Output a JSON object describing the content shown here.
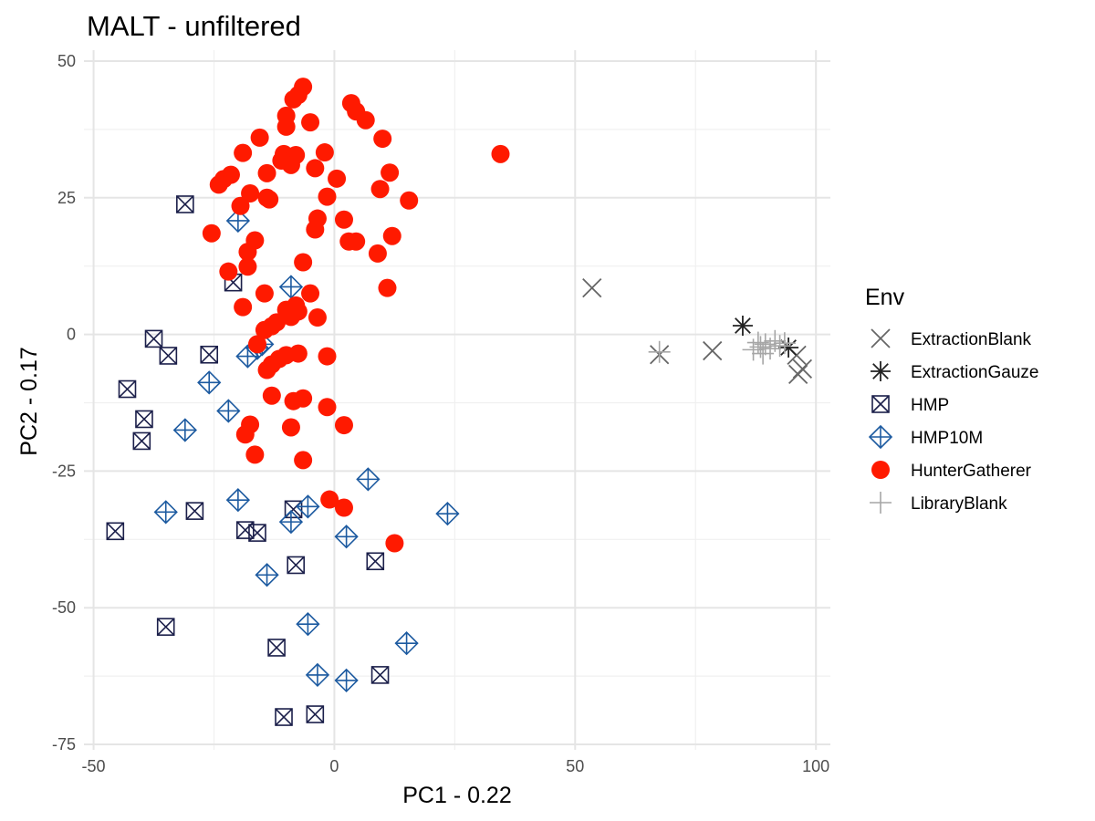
{
  "chart_data": {
    "type": "scatter",
    "title": "MALT - unfiltered",
    "xlabel": "PC1 - 0.22",
    "ylabel": "PC2 - 0.17",
    "xlim": [
      -52,
      103
    ],
    "ylim": [
      -76,
      52
    ],
    "x_ticks": [
      -50,
      0,
      50,
      100
    ],
    "y_ticks": [
      -75,
      -50,
      -25,
      0,
      25,
      50
    ],
    "x_tick_labels": [
      "-50",
      "0",
      "50",
      "100"
    ],
    "y_tick_labels": [
      "-75",
      "-50",
      "-25",
      "0",
      "25",
      "50"
    ],
    "grid": true,
    "legend_title": "Env",
    "legend_position": "right",
    "series": [
      {
        "name": "ExtractionBlank",
        "shape": "cross",
        "color": "#666666",
        "points": [
          [
            53.5,
            8.5
          ],
          [
            67.5,
            -3.7
          ],
          [
            78.5,
            -3.0
          ],
          [
            96.0,
            -3.8
          ],
          [
            96.3,
            -7.3
          ],
          [
            97.2,
            -6.3
          ]
        ]
      },
      {
        "name": "ExtractionGauze",
        "shape": "asterisk",
        "color": "#222222",
        "points": [
          [
            84.8,
            1.6
          ],
          [
            94.3,
            -2.4
          ]
        ]
      },
      {
        "name": "HMP",
        "shape": "square-x",
        "color": "#1b1f4a",
        "points": [
          [
            -31,
            23.8
          ],
          [
            -21,
            9.5
          ],
          [
            -37.5,
            -0.8
          ],
          [
            -34.5,
            -3.9
          ],
          [
            -26,
            -3.7
          ],
          [
            -43,
            -10
          ],
          [
            -39.5,
            -15.5
          ],
          [
            -40,
            -19.5
          ],
          [
            -45.5,
            -36
          ],
          [
            -29,
            -32.3
          ],
          [
            -18.5,
            -35.8
          ],
          [
            -16,
            -36.3
          ],
          [
            -8.5,
            -32
          ],
          [
            -8,
            -42.2
          ],
          [
            8.5,
            -41.5
          ],
          [
            -35,
            -53.5
          ],
          [
            -12,
            -57.3
          ],
          [
            9.5,
            -62.3
          ],
          [
            -10.5,
            -70
          ],
          [
            -4,
            -69.5
          ]
        ]
      },
      {
        "name": "HMP10M",
        "shape": "diamond-plus",
        "color": "#1c5aa0",
        "points": [
          [
            -20,
            20.8
          ],
          [
            -9,
            8.7
          ],
          [
            -15,
            -1.8
          ],
          [
            -16,
            -2.5
          ],
          [
            -18,
            -4
          ],
          [
            -26,
            -8.8
          ],
          [
            -22,
            -14
          ],
          [
            -31,
            -17.5
          ],
          [
            -35,
            -32.5
          ],
          [
            -20,
            -30.3
          ],
          [
            -5.5,
            -31.5
          ],
          [
            -9,
            -34.3
          ],
          [
            2.5,
            -37
          ],
          [
            7,
            -26.5
          ],
          [
            23.5,
            -32.8
          ],
          [
            -14,
            -44
          ],
          [
            -5.5,
            -53
          ],
          [
            15,
            -56.5
          ],
          [
            -3.5,
            -62.3
          ],
          [
            2.5,
            -63.3
          ]
        ]
      },
      {
        "name": "HunterGatherer",
        "shape": "circle",
        "color": "#ff1a00",
        "points": [
          [
            34.5,
            33
          ],
          [
            -6.5,
            45.3
          ],
          [
            -7.5,
            43.8
          ],
          [
            -8.5,
            43
          ],
          [
            3.5,
            42.3
          ],
          [
            4.5,
            40.8
          ],
          [
            6.5,
            39.2
          ],
          [
            -10,
            40
          ],
          [
            -5,
            38.8
          ],
          [
            -10,
            38
          ],
          [
            10,
            35.8
          ],
          [
            -15.5,
            36
          ],
          [
            -19,
            33.2
          ],
          [
            -10.5,
            33
          ],
          [
            -8,
            32.8
          ],
          [
            -2,
            33.3
          ],
          [
            -9,
            31
          ],
          [
            -11,
            31.8
          ],
          [
            -4,
            30.4
          ],
          [
            -14,
            29.5
          ],
          [
            0.5,
            28.5
          ],
          [
            11.5,
            29.6
          ],
          [
            -21.5,
            29.2
          ],
          [
            -23,
            28.4
          ],
          [
            -24,
            27.4
          ],
          [
            9.5,
            26.6
          ],
          [
            -17.5,
            25.8
          ],
          [
            -1.5,
            25.2
          ],
          [
            -14,
            25
          ],
          [
            -13.5,
            24.7
          ],
          [
            15.5,
            24.5
          ],
          [
            -19.5,
            23.5
          ],
          [
            -25.5,
            18.5
          ],
          [
            -3.5,
            21.2
          ],
          [
            2,
            21
          ],
          [
            -4,
            19.2
          ],
          [
            3,
            17
          ],
          [
            4.5,
            17
          ],
          [
            12,
            18
          ],
          [
            -16.5,
            17.2
          ],
          [
            -18,
            15.1
          ],
          [
            9,
            14.8
          ],
          [
            -6.5,
            13.2
          ],
          [
            -18,
            12.4
          ],
          [
            -22,
            11.5
          ],
          [
            11,
            8.5
          ],
          [
            -14.5,
            7.5
          ],
          [
            -5,
            7.5
          ],
          [
            -8,
            5.3
          ],
          [
            -19,
            5
          ],
          [
            -10,
            4.5
          ],
          [
            -7.5,
            4.2
          ],
          [
            -9,
            3.2
          ],
          [
            -3.5,
            3.1
          ],
          [
            -12,
            2.2
          ],
          [
            -13,
            1.5
          ],
          [
            -14.5,
            0.8
          ],
          [
            -16,
            -1.8
          ],
          [
            -1.5,
            -4
          ],
          [
            -7.5,
            -3.5
          ],
          [
            -10,
            -3.8
          ],
          [
            -11.5,
            -4.5
          ],
          [
            -13,
            -5.5
          ],
          [
            -14,
            -6.5
          ],
          [
            -13,
            -11.2
          ],
          [
            -6.5,
            -11.7
          ],
          [
            -8.5,
            -12.2
          ],
          [
            -1.5,
            -13.3
          ],
          [
            -17.5,
            -16.5
          ],
          [
            -9,
            -17
          ],
          [
            2,
            -16.6
          ],
          [
            -18.5,
            -18.3
          ],
          [
            -16.5,
            -22
          ],
          [
            -6.5,
            -23
          ],
          [
            -1,
            -30.2
          ],
          [
            2,
            -31.7
          ],
          [
            12.5,
            -38.2
          ]
        ]
      },
      {
        "name": "LibraryBlank",
        "shape": "plus",
        "color": "#a6a6a6",
        "points": [
          [
            67.5,
            -3.2
          ],
          [
            87,
            -2.8
          ],
          [
            88,
            -1.5
          ],
          [
            88.5,
            -2.3
          ],
          [
            89.5,
            -1.8
          ],
          [
            90.5,
            -2.6
          ],
          [
            91.5,
            -1.2
          ],
          [
            92.5,
            -2.1
          ],
          [
            93.5,
            -1.6
          ],
          [
            89,
            -3.5
          ]
        ]
      }
    ]
  }
}
